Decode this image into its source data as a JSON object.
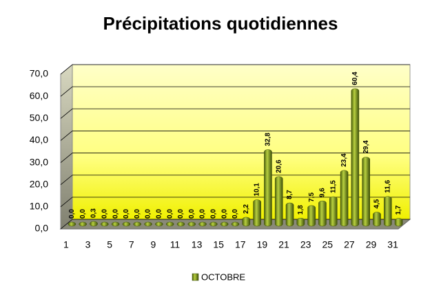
{
  "chart_data": {
    "type": "bar",
    "title": "Précipitations quotidiennes",
    "categories": [
      1,
      null,
      3,
      null,
      5,
      null,
      7,
      null,
      9,
      null,
      11,
      null,
      13,
      null,
      15,
      null,
      17,
      null,
      19,
      null,
      21,
      null,
      23,
      null,
      25,
      null,
      27,
      null,
      29,
      null,
      31
    ],
    "series": [
      {
        "name": "OCTOBRE",
        "color": "#7e9c1c",
        "values": [
          0.0,
          0.0,
          0.3,
          0.0,
          0.0,
          0.0,
          0.0,
          0.0,
          0.0,
          0.0,
          0.0,
          0.0,
          0.0,
          0.0,
          0.0,
          0.0,
          2.2,
          10.1,
          32.8,
          20.6,
          8.7,
          1.8,
          7.5,
          9.6,
          11.5,
          23.4,
          60.4,
          29.4,
          4.5,
          11.6,
          1.7
        ],
        "value_labels": [
          "0,0",
          "0,0",
          "0,3",
          "0,0",
          "0,0",
          "0,0",
          "0,0",
          "0,0",
          "0,0",
          "0,0",
          "0,0",
          "0,0",
          "0,0",
          "0,0",
          "0,0",
          "0,0",
          "2,2",
          "10,1",
          "32,8",
          "20,6",
          "8,7",
          "1,8",
          "7,5",
          "9,6",
          "11,5",
          "23,4",
          "60,4",
          "29,4",
          "4,5",
          "11,6",
          "1,7"
        ]
      }
    ],
    "ylim": [
      0,
      70
    ],
    "yticks": [
      {
        "value": 0,
        "label": "0,0"
      },
      {
        "value": 10,
        "label": "10,0"
      },
      {
        "value": 20,
        "label": "20,0"
      },
      {
        "value": 30,
        "label": "30,0"
      },
      {
        "value": 40,
        "label": "40,0"
      },
      {
        "value": 50,
        "label": "50,0"
      },
      {
        "value": 60,
        "label": "60,0"
      },
      {
        "value": 70,
        "label": "70,0"
      }
    ],
    "grid": true,
    "legend": "bottom"
  }
}
